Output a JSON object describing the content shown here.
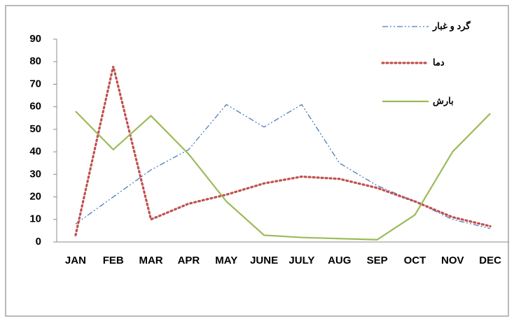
{
  "chart_data": {
    "type": "line",
    "categories": [
      "JAN",
      "FEB",
      "MAR",
      "APR",
      "MAY",
      "JUNE",
      "JULY",
      "AUG",
      "SEP",
      "OCT",
      "NOV",
      "DEC"
    ],
    "series": [
      {
        "name": "گرد و غبار",
        "color": "#4a7ebb",
        "dash": "dash-dot",
        "values": [
          8,
          20,
          32,
          41,
          61,
          51,
          61,
          35,
          25,
          18,
          10,
          6
        ]
      },
      {
        "name": "دما",
        "color": "#c0504d",
        "dash": "dot",
        "values": [
          3,
          78,
          10,
          17,
          21,
          26,
          29,
          28,
          24,
          18,
          11,
          7
        ]
      },
      {
        "name": "بارش",
        "color": "#9bbb59",
        "dash": "solid",
        "values": [
          58,
          41,
          56,
          39,
          18,
          3,
          2,
          1.5,
          1,
          12,
          40,
          57
        ]
      }
    ],
    "ylim": [
      0,
      90
    ],
    "yticks": [
      0,
      10,
      20,
      30,
      40,
      50,
      60,
      70,
      80,
      90
    ],
    "grid": false
  }
}
